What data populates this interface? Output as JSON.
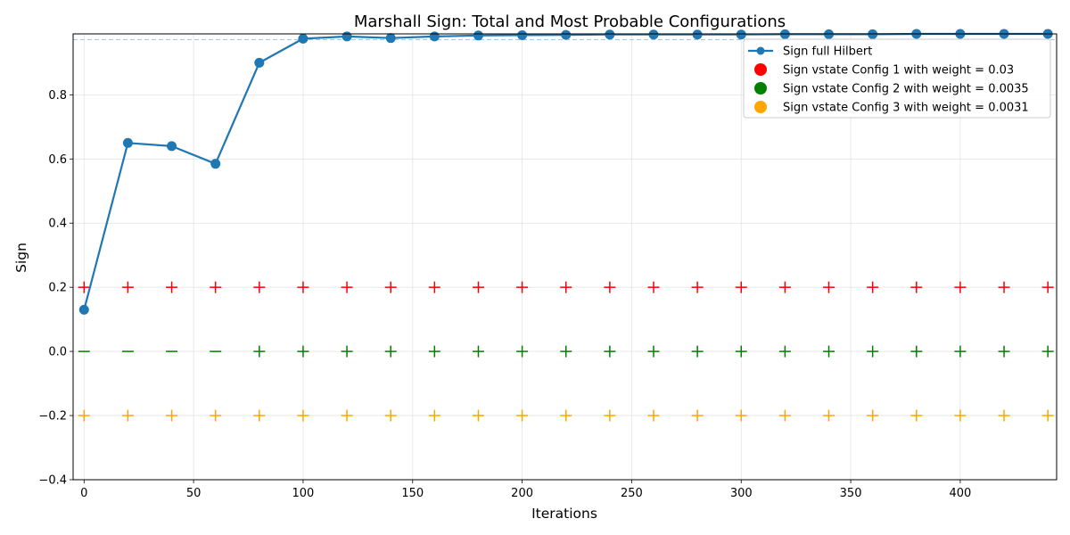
{
  "chart_data": {
    "type": "line",
    "title": "Marshall Sign: Total and Most Probable Configurations",
    "xlabel": "Iterations",
    "ylabel": "Sign",
    "xlim": [
      -5,
      444
    ],
    "ylim": [
      -0.4,
      0.99
    ],
    "xticks": [
      0,
      50,
      100,
      150,
      200,
      250,
      300,
      350,
      400
    ],
    "yticks": [
      -0.4,
      -0.2,
      0.0,
      0.2,
      0.4,
      0.6,
      0.8
    ],
    "ytick_labels": [
      "−0.4",
      "−0.2",
      "0.0",
      "0.2",
      "0.4",
      "0.6",
      "0.8"
    ],
    "grid": true,
    "legend_position": "top-right",
    "reference_line": {
      "y": 0.972,
      "style": "dashed",
      "color": "#a6c8e4"
    },
    "x": [
      0,
      20,
      40,
      60,
      80,
      100,
      120,
      140,
      160,
      180,
      200,
      220,
      240,
      260,
      280,
      300,
      320,
      340,
      360,
      380,
      400,
      420,
      440
    ],
    "series": [
      {
        "name": "Sign full Hilbert",
        "kind": "line",
        "color": "#1f77b4",
        "values": [
          0.13,
          0.65,
          0.64,
          0.585,
          0.9,
          0.975,
          0.982,
          0.977,
          0.982,
          0.985,
          0.986,
          0.987,
          0.988,
          0.988,
          0.988,
          0.988,
          0.989,
          0.989,
          0.989,
          0.99,
          0.99,
          0.99,
          0.99
        ]
      },
      {
        "name": "Sign vstate Config 1 with weight = 0.03",
        "kind": "sign-markers",
        "color": "#ff0000",
        "y": 0.2,
        "signs": [
          "+",
          "+",
          "+",
          "+",
          "+",
          "+",
          "+",
          "+",
          "+",
          "+",
          "+",
          "+",
          "+",
          "+",
          "+",
          "+",
          "+",
          "+",
          "+",
          "+",
          "+",
          "+",
          "+"
        ]
      },
      {
        "name": "Sign vstate Config 2 with weight = 0.0035",
        "kind": "sign-markers",
        "color": "#008000",
        "y": 0.0,
        "signs": [
          "−",
          "−",
          "−",
          "−",
          "+",
          "+",
          "+",
          "+",
          "+",
          "+",
          "+",
          "+",
          "+",
          "+",
          "+",
          "+",
          "+",
          "+",
          "+",
          "+",
          "+",
          "+",
          "+"
        ]
      },
      {
        "name": "Sign vstate Config 3 with weight = 0.0031",
        "kind": "sign-markers",
        "color": "#ffa500",
        "y": -0.2,
        "signs": [
          "+",
          "+",
          "+",
          "+",
          "+",
          "+",
          "+",
          "+",
          "+",
          "+",
          "+",
          "+",
          "+",
          "+",
          "+",
          "+",
          "+",
          "+",
          "+",
          "+",
          "+",
          "+",
          "+"
        ]
      }
    ]
  }
}
